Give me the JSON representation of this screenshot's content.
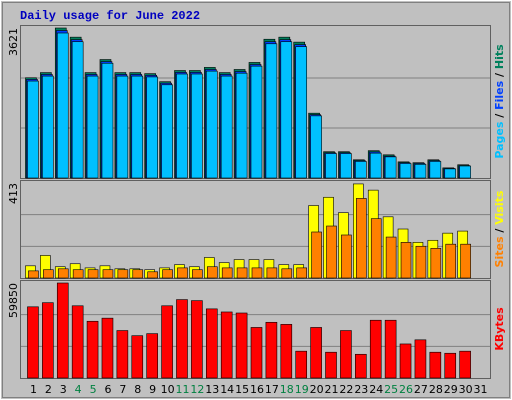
{
  "chart_data": [
    {
      "type": "bar",
      "title": "Daily usage for June 2022",
      "title_color": "#0000c0",
      "ylim": [
        0,
        3621
      ],
      "yticks": [
        3621
      ],
      "grid": true,
      "series": [
        {
          "name": "Hits",
          "color": "#00805c",
          "values": [
            2420,
            2545,
            3621,
            3400,
            2545,
            2860,
            2545,
            2545,
            2520,
            2325,
            2595,
            2595,
            2670,
            2545,
            2620,
            2790,
            3350,
            3400,
            3280,
            1565,
            635,
            635,
            440,
            660,
            560,
            390,
            370,
            440,
            245,
            320,
            null
          ]
        },
        {
          "name": "Files",
          "color": "#0040ff",
          "values": [
            2380,
            2500,
            3560,
            3340,
            2500,
            2810,
            2500,
            2500,
            2480,
            2290,
            2550,
            2550,
            2620,
            2500,
            2570,
            2740,
            3290,
            3340,
            3220,
            1530,
            610,
            610,
            420,
            630,
            530,
            370,
            350,
            420,
            230,
            300,
            null
          ]
        },
        {
          "name": "Pages",
          "color": "#00c0ff",
          "values": [
            2340,
            2460,
            3500,
            3290,
            2460,
            2770,
            2460,
            2460,
            2440,
            2250,
            2510,
            2510,
            2580,
            2460,
            2530,
            2700,
            3240,
            3290,
            3170,
            1500,
            590,
            590,
            400,
            600,
            510,
            350,
            330,
            400,
            220,
            290,
            null
          ]
        }
      ]
    },
    {
      "type": "bar",
      "ylim": [
        0,
        413
      ],
      "yticks": [
        413
      ],
      "grid": true,
      "series": [
        {
          "name": "Visits",
          "color": "#ffff00",
          "values": [
            53,
            98,
            49,
            62,
            44,
            53,
            40,
            40,
            36,
            44,
            58,
            49,
            89,
            67,
            80,
            80,
            80,
            58,
            58,
            315,
            351,
            284,
            409,
            382,
            266,
            213,
            155,
            164,
            195,
            204,
            null
          ]
        },
        {
          "name": "Sites",
          "color": "#ff8000",
          "values": [
            31,
            36,
            40,
            36,
            36,
            36,
            36,
            36,
            27,
            36,
            44,
            36,
            49,
            44,
            44,
            44,
            44,
            40,
            44,
            200,
            226,
            187,
            346,
            258,
            178,
            155,
            138,
            129,
            147,
            147,
            null
          ]
        }
      ]
    },
    {
      "type": "bar",
      "ylim": [
        0,
        59850
      ],
      "yticks": [
        59850
      ],
      "grid": true,
      "categories": [
        1,
        2,
        3,
        4,
        5,
        6,
        7,
        8,
        9,
        10,
        11,
        12,
        13,
        14,
        15,
        16,
        17,
        18,
        19,
        20,
        21,
        22,
        23,
        24,
        25,
        26,
        27,
        28,
        29,
        30,
        31
      ],
      "weekends": [
        4,
        5,
        11,
        12,
        18,
        19,
        25,
        26
      ],
      "weekend_color": "#008040",
      "series": [
        {
          "name": "KBytes",
          "color": "#ff0000",
          "values": [
            44850,
            47450,
            59850,
            45500,
            35750,
            37700,
            29900,
            26650,
            27950,
            45500,
            49400,
            48750,
            43550,
            41600,
            40950,
            31850,
            35100,
            33800,
            16900,
            31850,
            16250,
            29900,
            14950,
            36400,
            36400,
            21450,
            24050,
            16250,
            15600,
            16900,
            null
          ]
        }
      ]
    }
  ]
}
